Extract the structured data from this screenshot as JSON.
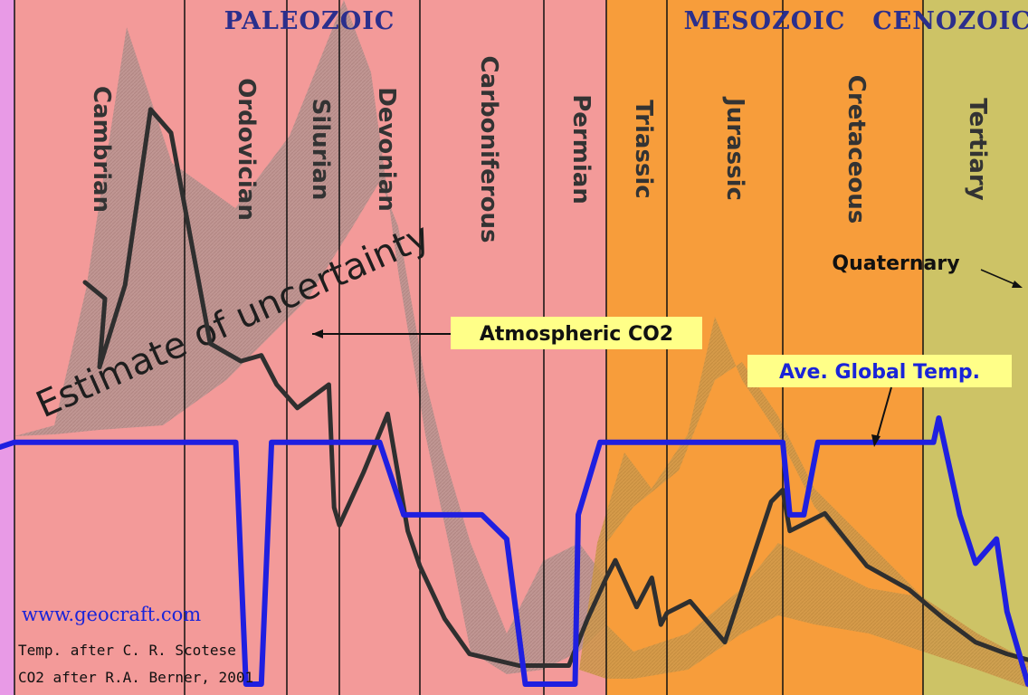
{
  "chart_data": {
    "type": "line",
    "title": "",
    "xlabel": "",
    "ylabel": "",
    "eras": [
      "PALEOZOIC",
      "MESOZOIC",
      "CENOZOIC"
    ],
    "periods": [
      "Cambrian",
      "Ordovician",
      "Silurian",
      "Devonian",
      "Carboniferous",
      "Permian",
      "Triassic",
      "Jurassic",
      "Cretaceous",
      "Tertiary"
    ],
    "annotations": {
      "uncertainty": "Estimate of uncertainty",
      "co2": "Atmospheric CO2",
      "temp": "Ave. Global Temp.",
      "quaternary": "Quaternary"
    },
    "credits": {
      "website": "www.geocraft.com",
      "temp_source": "Temp. after C. R. Scotese",
      "co2_source": "CO2 after R.A. Berner, 2001"
    },
    "x_axis_note": "geologic time, oldest at left; values are relative positions within each period (0 = start, 1 = end)",
    "series": [
      {
        "name": "Atmospheric CO2",
        "color": "#2f2f2f",
        "points": [
          [
            0,
            0.5,
            0.52
          ],
          [
            0,
            0.65,
            0.66
          ],
          [
            0,
            0.8,
            0.96
          ],
          [
            0,
            0.92,
            0.92
          ],
          [
            1,
            0.25,
            0.56
          ],
          [
            1,
            0.55,
            0.53
          ],
          [
            1,
            0.75,
            0.54
          ],
          [
            1,
            0.9,
            0.49
          ],
          [
            2,
            0.2,
            0.45
          ],
          [
            2,
            0.5,
            0.47
          ],
          [
            2,
            0.8,
            0.49
          ],
          [
            2,
            0.9,
            0.28
          ],
          [
            2,
            1.0,
            0.25
          ],
          [
            3,
            0.3,
            0.34
          ],
          [
            3,
            0.6,
            0.44
          ],
          [
            3,
            0.85,
            0.24
          ],
          [
            3,
            1.0,
            0.18
          ],
          [
            4,
            0.2,
            0.09
          ],
          [
            4,
            0.4,
            0.03
          ],
          [
            4,
            0.6,
            0.02
          ],
          [
            4,
            0.8,
            0.01
          ],
          [
            4,
            1.0,
            0.01
          ],
          [
            5,
            0.4,
            0.01
          ],
          [
            5,
            0.7,
            0.09
          ],
          [
            5,
            1.0,
            0.16
          ],
          [
            6,
            0.15,
            0.19
          ],
          [
            6,
            0.5,
            0.11
          ],
          [
            6,
            0.75,
            0.16
          ],
          [
            6,
            0.9,
            0.08
          ],
          [
            6,
            1.0,
            0.1
          ],
          [
            7,
            0.2,
            0.12
          ],
          [
            7,
            0.5,
            0.05
          ],
          [
            7,
            0.75,
            0.2
          ],
          [
            7,
            0.9,
            0.29
          ],
          [
            7,
            1.0,
            0.31
          ],
          [
            8,
            0.05,
            0.24
          ],
          [
            8,
            0.3,
            0.27
          ],
          [
            8,
            0.6,
            0.18
          ],
          [
            8,
            0.9,
            0.14
          ],
          [
            8,
            1.0,
            0.12
          ],
          [
            9,
            0.2,
            0.09
          ],
          [
            9,
            0.5,
            0.05
          ],
          [
            9,
            0.8,
            0.03
          ],
          [
            9,
            1.0,
            0.02
          ]
        ]
      },
      {
        "name": "Ave. Global Temp.",
        "color": "#1f1fe0",
        "points": [
          [
            0,
            0.0,
            22
          ],
          [
            0,
            1.0,
            22
          ],
          [
            1,
            0.5,
            22
          ],
          [
            1,
            0.6,
            12
          ],
          [
            1,
            0.75,
            12
          ],
          [
            1,
            0.85,
            22
          ],
          [
            2,
            0.5,
            22
          ],
          [
            3,
            0.5,
            22
          ],
          [
            3,
            0.8,
            19
          ],
          [
            4,
            0.5,
            19
          ],
          [
            4,
            0.7,
            18
          ],
          [
            4,
            0.85,
            12
          ],
          [
            4,
            1.0,
            12
          ],
          [
            5,
            0.5,
            12
          ],
          [
            5,
            0.55,
            19
          ],
          [
            5,
            0.9,
            22
          ],
          [
            6,
            0.2,
            22
          ],
          [
            7,
            1.0,
            22
          ],
          [
            8,
            0.05,
            19
          ],
          [
            8,
            0.15,
            19
          ],
          [
            8,
            0.25,
            22
          ],
          [
            8,
            1.0,
            22
          ],
          [
            9,
            0.1,
            22
          ],
          [
            9,
            0.15,
            23
          ],
          [
            9,
            0.35,
            19
          ],
          [
            9,
            0.5,
            17
          ],
          [
            9,
            0.7,
            18
          ],
          [
            9,
            0.8,
            15
          ],
          [
            9,
            1.0,
            12
          ]
        ]
      }
    ],
    "ylim_temp": [
      12,
      23
    ]
  },
  "colors": {
    "paleozoic": "#f39a99",
    "mesozoic": "#f79d3b",
    "cenozoic": "#cdc366",
    "uncertainty_band": "#b99895",
    "edge_left": "#e89ae6"
  }
}
